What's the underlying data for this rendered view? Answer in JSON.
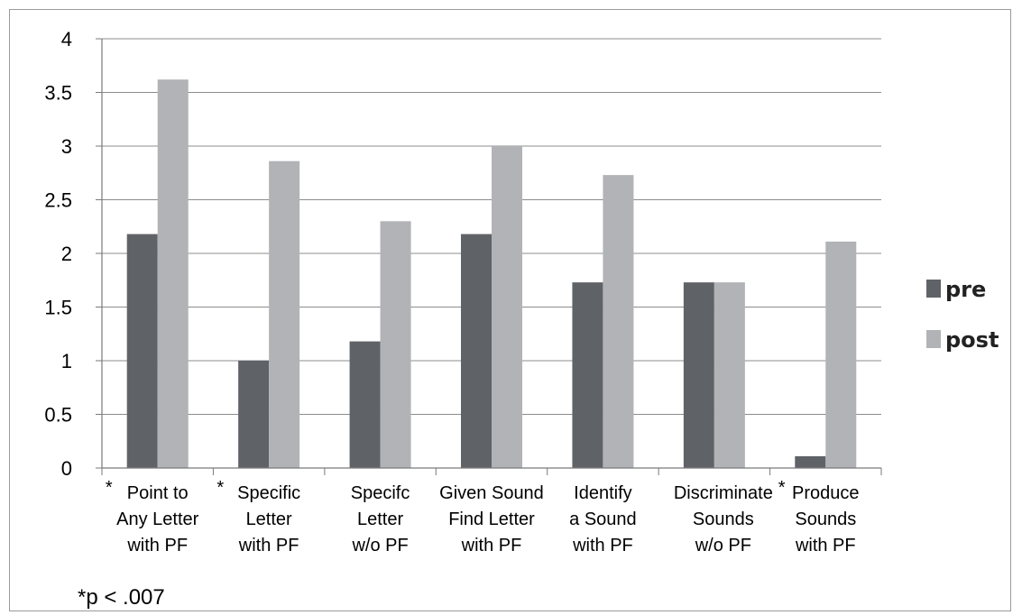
{
  "chart_data": {
    "type": "bar",
    "title": "",
    "xlabel": "",
    "ylabel": "",
    "ylim": [
      0,
      4
    ],
    "yticks": [
      "0",
      "0.5",
      "1",
      "1.5",
      "2",
      "2.5",
      "3",
      "3.5",
      "4"
    ],
    "grid": true,
    "legend_position": "right",
    "categories": [
      {
        "lines": [
          "Point to",
          "Any Letter",
          "with PF"
        ],
        "marker": "*"
      },
      {
        "lines": [
          "Specific",
          "Letter",
          "with PF"
        ],
        "marker": "*"
      },
      {
        "lines": [
          "Specifc",
          "Letter",
          "w/o PF"
        ],
        "marker": ""
      },
      {
        "lines": [
          "Given Sound",
          "Find Letter",
          "with PF"
        ],
        "marker": ""
      },
      {
        "lines": [
          "Identify",
          "a Sound",
          "with PF"
        ],
        "marker": ""
      },
      {
        "lines": [
          "Discriminate",
          "Sounds",
          "w/o PF"
        ],
        "marker": ""
      },
      {
        "lines": [
          "Produce",
          "Sounds",
          "with PF"
        ],
        "marker": "*"
      }
    ],
    "series": [
      {
        "name": "pre",
        "color": "#5f6367",
        "values": [
          2.18,
          1.0,
          1.18,
          2.18,
          1.73,
          1.73,
          0.11
        ]
      },
      {
        "name": "post",
        "color": "#b1b3b6",
        "values": [
          3.62,
          2.86,
          2.3,
          3.0,
          2.73,
          1.73,
          2.11
        ]
      }
    ],
    "footnote": "*p < .007"
  }
}
